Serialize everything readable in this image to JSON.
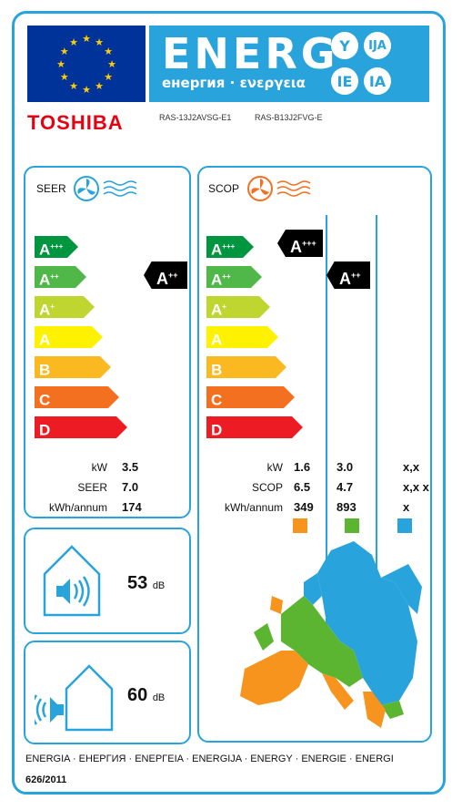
{
  "header": {
    "title": "ENERG",
    "subtitle": "енергия · ενεργεια",
    "suffixes": [
      "Y",
      "IJA",
      "IE",
      "IA"
    ],
    "brand": "TOSHIBA",
    "model_indoor": "RAS-13J2AVSG-E1",
    "model_outdoor": "RAS-B13J2FVG-E",
    "colors": {
      "eu_blue": "#003399",
      "label_blue": "#29a3dc",
      "brand_red": "#e60012"
    }
  },
  "classes": [
    {
      "base": "A",
      "sup": "+++",
      "color": "#00963f"
    },
    {
      "base": "A",
      "sup": "++",
      "color": "#50b848"
    },
    {
      "base": "A",
      "sup": "+",
      "color": "#bed62f"
    },
    {
      "base": "A",
      "sup": "",
      "color": "#fff200"
    },
    {
      "base": "B",
      "sup": "",
      "color": "#fbb921"
    },
    {
      "base": "C",
      "sup": "",
      "color": "#f37021"
    },
    {
      "base": "D",
      "sup": "",
      "color": "#ed1c24"
    }
  ],
  "cooling": {
    "title": "SEER",
    "icon": "fan-cold-icon",
    "class": {
      "base": "A",
      "sup": "++"
    },
    "labels": [
      "kW",
      "SEER",
      "kWh/annum"
    ],
    "values": [
      "3.5",
      "7.0",
      "174"
    ]
  },
  "heating": {
    "title": "SCOP",
    "icon": "fan-warm-icon",
    "classes": [
      {
        "base": "A",
        "sup": "+++"
      },
      {
        "base": "A",
        "sup": "++"
      }
    ],
    "labels": [
      "kW",
      "SCOP",
      "kWh/annum"
    ],
    "zone_values": [
      [
        "1.6",
        "6.5",
        "349"
      ],
      [
        "3.0",
        "4.7",
        "893"
      ],
      [
        "x,x",
        "x,x x",
        "x"
      ]
    ],
    "zone_colors": [
      "#f7941d",
      "#5cb531",
      "#29a3dc"
    ]
  },
  "noise": {
    "indoor": {
      "value": "53",
      "unit": "dB",
      "icon": "indoor-sound-icon"
    },
    "outdoor": {
      "value": "60",
      "unit": "dB",
      "icon": "outdoor-sound-icon"
    }
  },
  "footer": {
    "languages": "ENERGIA · ЕНЕРГИЯ · ΕΝΕΡΓΕΙΑ · ENERGIJA · ENERGY · ENERGIE · ENERGI",
    "regulation": "626/2011"
  }
}
